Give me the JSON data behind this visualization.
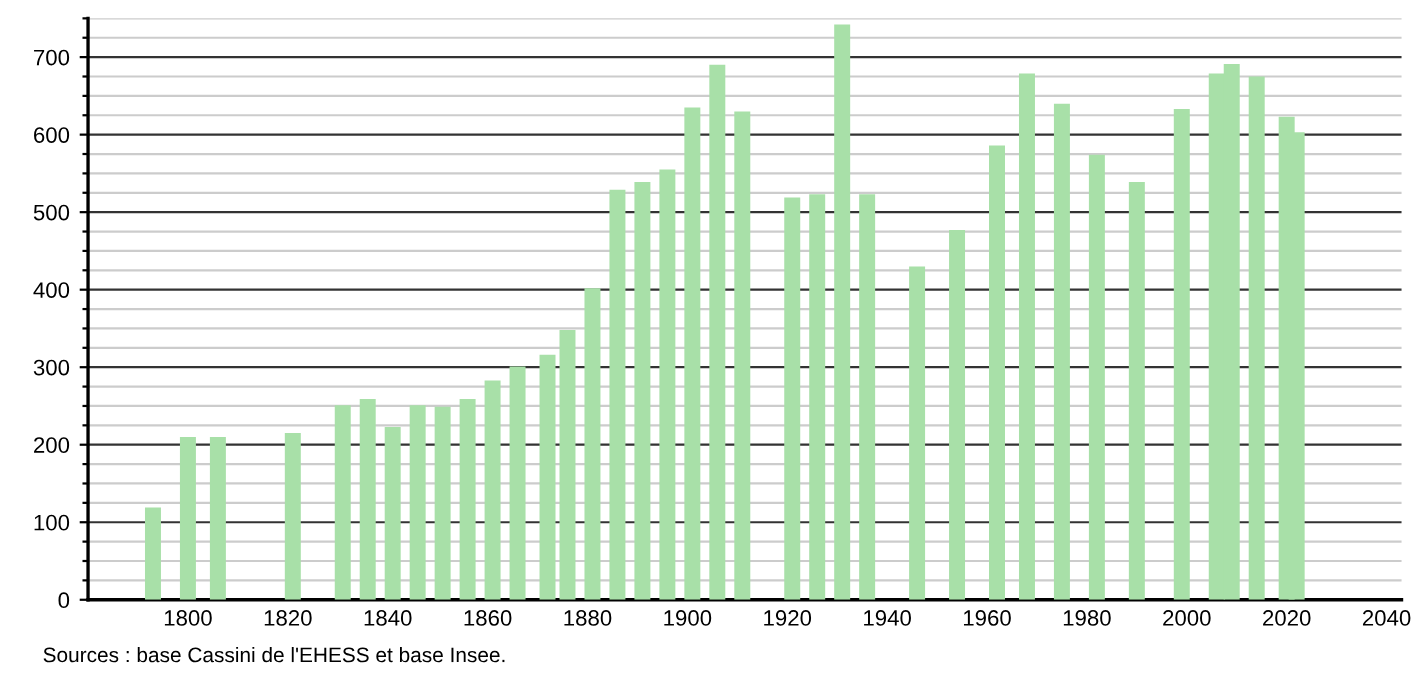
{
  "chart_data": {
    "type": "bar",
    "x": [
      1793,
      1800,
      1806,
      1821,
      1831,
      1836,
      1841,
      1846,
      1851,
      1856,
      1861,
      1866,
      1872,
      1876,
      1881,
      1886,
      1891,
      1896,
      1901,
      1906,
      1911,
      1921,
      1926,
      1931,
      1936,
      1946,
      1954,
      1962,
      1968,
      1975,
      1982,
      1990,
      1999,
      2006,
      2009,
      2014,
      2020,
      2022
    ],
    "values": [
      119,
      210,
      210,
      215,
      251,
      259,
      223,
      251,
      249,
      259,
      283,
      301,
      316,
      348,
      402,
      529,
      539,
      555,
      635,
      690,
      630,
      519,
      523,
      742,
      523,
      430,
      477,
      586,
      679,
      640,
      574,
      539,
      633,
      679,
      691,
      675,
      623,
      603
    ],
    "color": "#a8e0a8",
    "xlim": [
      1780,
      2043
    ],
    "ylim": [
      0,
      750
    ],
    "xticks": [
      1800,
      1820,
      1840,
      1860,
      1880,
      1900,
      1920,
      1940,
      1960,
      1980,
      2000,
      2020,
      2040
    ],
    "yticks": [
      0,
      {
        "value": 25,
        "label": null
      },
      {
        "value": 50,
        "label": null
      },
      {
        "value": 75,
        "label": null
      },
      100,
      {
        "value": 125,
        "label": null
      },
      {
        "value": 150,
        "label": null
      },
      {
        "value": 175,
        "label": null
      },
      200,
      {
        "value": 225,
        "label": null
      },
      {
        "value": 250,
        "label": null
      },
      {
        "value": 275,
        "label": null
      },
      300,
      {
        "value": 325,
        "label": null
      },
      {
        "value": 350,
        "label": null
      },
      {
        "value": 375,
        "label": null
      },
      400,
      {
        "value": 425,
        "label": null
      },
      {
        "value": 450,
        "label": null
      },
      {
        "value": 475,
        "label": null
      },
      500,
      {
        "value": 525,
        "label": null
      },
      {
        "value": 550,
        "label": null
      },
      {
        "value": 575,
        "label": null
      },
      600,
      {
        "value": 625,
        "label": null
      },
      {
        "value": 650,
        "label": null
      },
      {
        "value": 675,
        "label": null
      },
      700,
      {
        "value": 725,
        "label": null
      },
      {
        "value": 750,
        "label": null
      }
    ],
    "grid": "y",
    "annotations": [
      "Sources : base Cassini de l'EHESS et base Insee."
    ]
  }
}
